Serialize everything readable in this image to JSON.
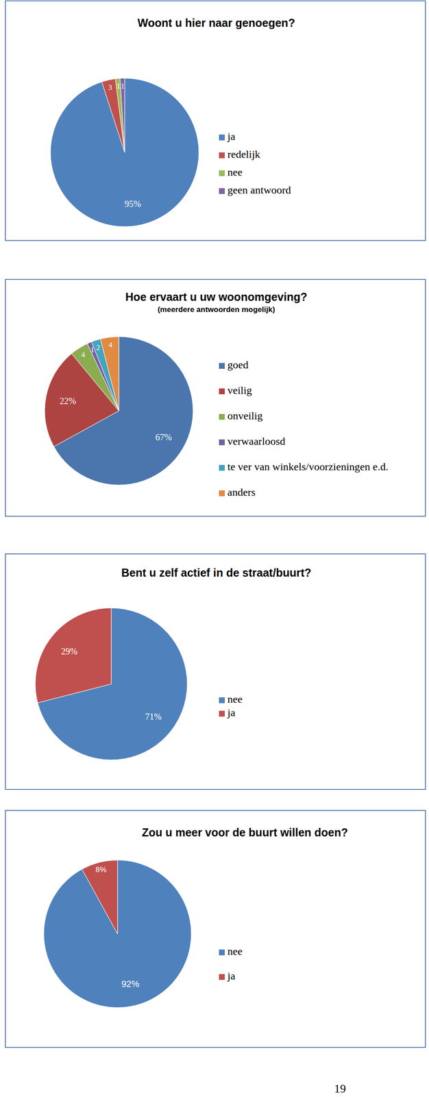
{
  "chart_data": [
    {
      "type": "pie",
      "title": "Woont u hier naar genoegen?",
      "categories": [
        "ja",
        "redelijk",
        "nee",
        "geen antwoord"
      ],
      "values": [
        95,
        3,
        1,
        1
      ],
      "value_labels": [
        "95%",
        "3",
        "1",
        "1"
      ],
      "colors": [
        "#4f81bd",
        "#c0504d",
        "#9bbb59",
        "#8064a2"
      ],
      "data_labels": true,
      "legend": "right"
    },
    {
      "type": "pie",
      "title": "Hoe ervaart u uw woonomgeving?",
      "subtitle": "(meerdere antwoorden mogelijk)",
      "categories": [
        "goed",
        "veilig",
        "onveilig",
        "verwaarloosd",
        "te ver van winkels/voorzieningen e.d.",
        "anders"
      ],
      "values": [
        67,
        22,
        4,
        1,
        2,
        4
      ],
      "value_labels": [
        "67%",
        "22%",
        "4",
        "1",
        "2",
        "4"
      ],
      "colors": [
        "#4a76ad",
        "#ad4442",
        "#8cac52",
        "#7560a0",
        "#46a2bd",
        "#e08a42"
      ],
      "data_labels": true,
      "legend": "right"
    },
    {
      "type": "pie",
      "title": "Bent u zelf actief in de straat/buurt?",
      "categories": [
        "nee",
        "ja"
      ],
      "values": [
        71,
        29
      ],
      "value_labels": [
        "71%",
        "29%"
      ],
      "colors": [
        "#4f81bd",
        "#c0504d"
      ],
      "data_labels": true,
      "legend": "right"
    },
    {
      "type": "pie",
      "title": "Zou u meer voor de buurt willen doen?",
      "categories": [
        "nee",
        "ja"
      ],
      "values": [
        92,
        8
      ],
      "value_labels": [
        "92%",
        "8%"
      ],
      "colors": [
        "#4f81bd",
        "#c0504d"
      ],
      "data_labels": true,
      "legend": "right"
    }
  ],
  "page_number": "19"
}
